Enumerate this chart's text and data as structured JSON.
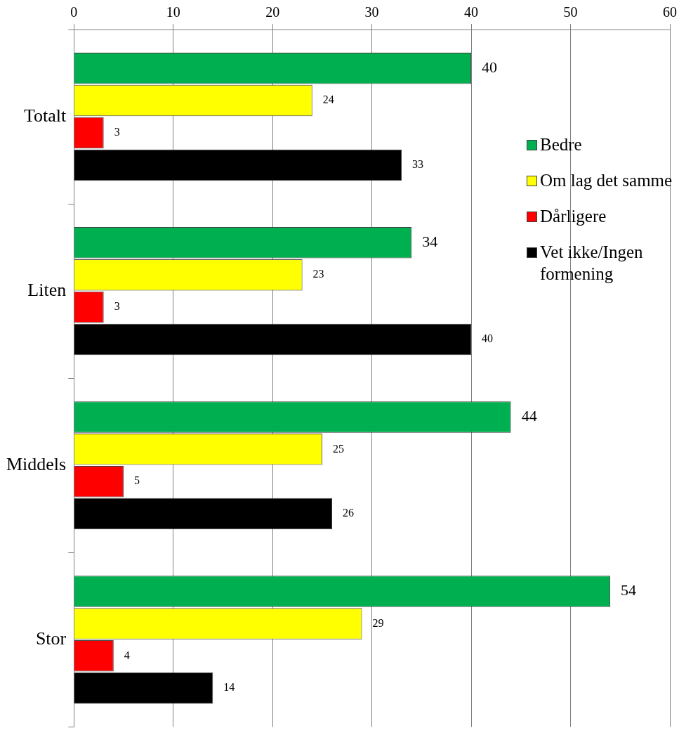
{
  "chart_data": {
    "type": "bar",
    "orientation": "horizontal",
    "categories": [
      "Totalt",
      "Liten",
      "Middels",
      "Stor"
    ],
    "series": [
      {
        "name": "Bedre",
        "color": "#00b050",
        "values": [
          40,
          34,
          44,
          54
        ]
      },
      {
        "name": "Om lag det samme",
        "color": "#ffff00",
        "values": [
          24,
          23,
          25,
          29
        ]
      },
      {
        "name": "Dårligere",
        "color": "#ff0000",
        "values": [
          3,
          3,
          5,
          4
        ]
      },
      {
        "name": "Vet ikke/Ingen formening",
        "color": "#000000",
        "values": [
          33,
          40,
          26,
          14
        ]
      }
    ],
    "xlim": [
      0,
      60
    ],
    "xticks": [
      0,
      10,
      20,
      30,
      40,
      50,
      60
    ],
    "grid": "x",
    "legend": "right",
    "data_labels": true
  }
}
